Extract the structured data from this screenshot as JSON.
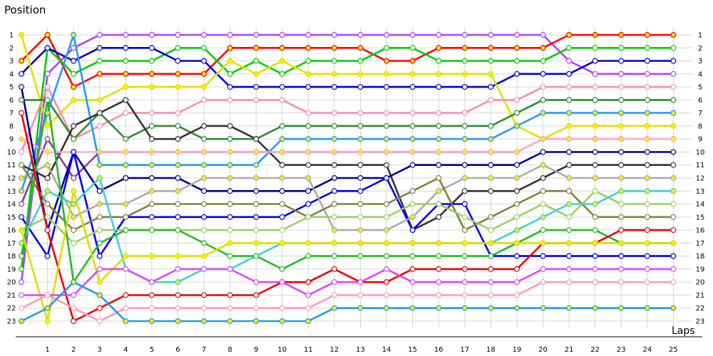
{
  "chart_data": {
    "type": "line",
    "ylabel": "Position",
    "xlabel": "Laps",
    "x": [
      0,
      1,
      2,
      3,
      4,
      5,
      6,
      7,
      8,
      9,
      10,
      11,
      12,
      13,
      14,
      15,
      16,
      17,
      18,
      19,
      20,
      21,
      22,
      23,
      24,
      25
    ],
    "x_ticks": [
      1,
      2,
      3,
      4,
      5,
      6,
      7,
      8,
      9,
      10,
      11,
      12,
      13,
      14,
      15,
      16,
      17,
      18,
      19,
      20,
      21,
      22,
      23,
      24,
      25
    ],
    "y_ticks": [
      1,
      2,
      3,
      4,
      5,
      6,
      7,
      8,
      9,
      10,
      11,
      12,
      13,
      14,
      15,
      16,
      17,
      18,
      19,
      20,
      21,
      22,
      23
    ],
    "xlim": [
      0,
      25.7
    ],
    "ylim": [
      23,
      1
    ],
    "grid": true,
    "series": [
      {
        "color": "#b040ff",
        "positions": [
          20,
          4,
          2,
          1,
          1,
          1,
          1,
          1,
          1,
          1,
          1,
          1,
          1,
          1,
          1,
          1,
          1,
          1,
          1,
          1,
          1,
          3,
          4,
          4,
          4,
          4
        ]
      },
      {
        "color": "#ff0000",
        "positions": [
          3,
          1,
          5,
          4,
          4,
          4,
          4,
          4,
          2,
          2,
          2,
          2,
          2,
          2,
          3,
          3,
          2,
          2,
          2,
          2,
          2,
          1,
          1,
          1,
          1,
          1
        ]
      },
      {
        "color": "#00cc00",
        "positions": [
          19,
          2,
          4,
          3,
          3,
          3,
          2,
          2,
          4,
          3,
          4,
          3,
          3,
          3,
          2,
          2,
          3,
          3,
          3,
          3,
          3,
          2,
          2,
          2,
          2,
          2
        ]
      },
      {
        "color": "#0000cc",
        "positions": [
          4,
          2,
          3,
          2,
          2,
          2,
          3,
          3,
          5,
          5,
          5,
          5,
          5,
          5,
          5,
          5,
          5,
          5,
          5,
          4,
          4,
          4,
          3,
          3,
          3,
          3
        ]
      },
      {
        "color": "#e0e000",
        "positions": [
          1,
          8,
          6,
          6,
          5,
          5,
          5,
          5,
          3,
          4,
          3,
          4,
          4,
          4,
          4,
          4,
          4,
          4,
          4,
          8,
          9,
          8,
          8,
          8,
          8,
          8
        ]
      },
      {
        "color": "#ff8ab0",
        "positions": [
          10,
          5,
          9,
          8,
          7,
          7,
          7,
          6,
          6,
          6,
          6,
          7,
          7,
          7,
          7,
          7,
          7,
          7,
          6,
          6,
          5,
          5,
          5,
          5,
          5,
          5
        ]
      },
      {
        "color": "#2e8b2e",
        "positions": [
          6,
          6,
          9,
          7,
          9,
          8,
          8,
          9,
          9,
          9,
          8,
          8,
          8,
          8,
          8,
          8,
          8,
          8,
          8,
          7,
          6,
          6,
          6,
          6,
          6,
          6
        ]
      },
      {
        "color": "#1e9bff",
        "positions": [
          13,
          7,
          1,
          11,
          11,
          11,
          11,
          11,
          11,
          11,
          9,
          9,
          9,
          9,
          9,
          9,
          9,
          9,
          9,
          8,
          7,
          7,
          7,
          7,
          7,
          7
        ]
      },
      {
        "color": "#333333",
        "positions": [
          11,
          12,
          8,
          7,
          6,
          9,
          9,
          8,
          8,
          9,
          11,
          11,
          11,
          11,
          11,
          16,
          15,
          13,
          13,
          13,
          12,
          11,
          11,
          11,
          11,
          11
        ]
      },
      {
        "color": "#8b3a9b",
        "positions": [
          14,
          9,
          12,
          10,
          10,
          10,
          10,
          10,
          10,
          10,
          10,
          10,
          10,
          10,
          10,
          10,
          10,
          10,
          10,
          10,
          9,
          9,
          9,
          9,
          9,
          9
        ]
      },
      {
        "color": "#ffaacc",
        "positions": [
          9,
          10,
          10,
          10,
          10,
          10,
          10,
          10,
          10,
          10,
          10,
          10,
          10,
          10,
          10,
          10,
          10,
          10,
          10,
          10,
          9,
          9,
          9,
          9,
          9,
          9
        ]
      },
      {
        "color": "#00008b",
        "positions": [
          5,
          16,
          10,
          13,
          12,
          12,
          12,
          13,
          13,
          13,
          13,
          13,
          12,
          12,
          12,
          11,
          11,
          11,
          11,
          11,
          10,
          10,
          10,
          10,
          10,
          10
        ]
      },
      {
        "color": "#0000ee",
        "positions": [
          15,
          18,
          10,
          18,
          15,
          15,
          15,
          15,
          15,
          15,
          15,
          14,
          13,
          13,
          12,
          16,
          14,
          14,
          18,
          18,
          18,
          18,
          18,
          18,
          18,
          18
        ]
      },
      {
        "color": "#aaaaaa",
        "positions": [
          12,
          11,
          15,
          14,
          14,
          13,
          13,
          12,
          12,
          12,
          12,
          12,
          16,
          16,
          16,
          15,
          13,
          12,
          12,
          12,
          11,
          12,
          12,
          12,
          12,
          12
        ]
      },
      {
        "color": "#808040",
        "positions": [
          11,
          14,
          16,
          15,
          15,
          14,
          14,
          14,
          14,
          14,
          14,
          15,
          14,
          14,
          14,
          13,
          12,
          16,
          15,
          14,
          13,
          13,
          15,
          15,
          15,
          15
        ]
      },
      {
        "color": "#9ad060",
        "positions": [
          16,
          15,
          17,
          16,
          16,
          16,
          16,
          16,
          16,
          16,
          16,
          15,
          15,
          15,
          15,
          14,
          14,
          15,
          16,
          15,
          14,
          15,
          13,
          14,
          14,
          14
        ]
      },
      {
        "color": "#40d0d0",
        "positions": [
          17,
          13,
          14,
          12,
          19,
          20,
          20,
          19,
          19,
          18,
          17,
          17,
          17,
          17,
          17,
          17,
          17,
          17,
          17,
          16,
          15,
          14,
          14,
          13,
          13,
          13
        ]
      },
      {
        "color": "#22bb22",
        "positions": [
          18,
          6,
          20,
          17,
          16,
          16,
          16,
          17,
          18,
          18,
          19,
          18,
          18,
          18,
          18,
          18,
          18,
          18,
          18,
          17,
          16,
          16,
          16,
          17,
          17,
          17
        ]
      },
      {
        "color": "#ee0000",
        "positions": [
          7,
          16,
          23,
          22,
          21,
          21,
          21,
          21,
          21,
          21,
          20,
          20,
          19,
          20,
          20,
          19,
          19,
          19,
          19,
          19,
          17,
          17,
          17,
          16,
          16,
          16
        ]
      },
      {
        "color": "#dddd00",
        "positions": [
          16,
          23,
          13,
          20,
          18,
          18,
          18,
          18,
          17,
          17,
          17,
          17,
          17,
          17,
          17,
          17,
          17,
          17,
          17,
          17,
          17,
          17,
          17,
          17,
          17,
          17
        ]
      },
      {
        "color": "#dd44ff",
        "positions": [
          21,
          21,
          21,
          19,
          19,
          20,
          19,
          19,
          19,
          20,
          20,
          21,
          20,
          20,
          19,
          20,
          20,
          20,
          20,
          20,
          19,
          19,
          19,
          19,
          19,
          19
        ]
      },
      {
        "color": "#ff99bb",
        "positions": [
          22,
          21,
          22,
          23,
          22,
          22,
          22,
          22,
          22,
          22,
          22,
          22,
          21,
          21,
          21,
          21,
          21,
          21,
          21,
          21,
          20,
          20,
          20,
          20,
          20,
          20
        ]
      },
      {
        "color": "#2299ee",
        "positions": [
          23,
          22,
          20,
          21,
          23,
          23,
          23,
          23,
          23,
          23,
          23,
          23,
          22,
          22,
          22,
          22,
          22,
          22,
          22,
          22,
          22,
          22,
          22,
          22,
          22,
          22
        ]
      }
    ]
  }
}
